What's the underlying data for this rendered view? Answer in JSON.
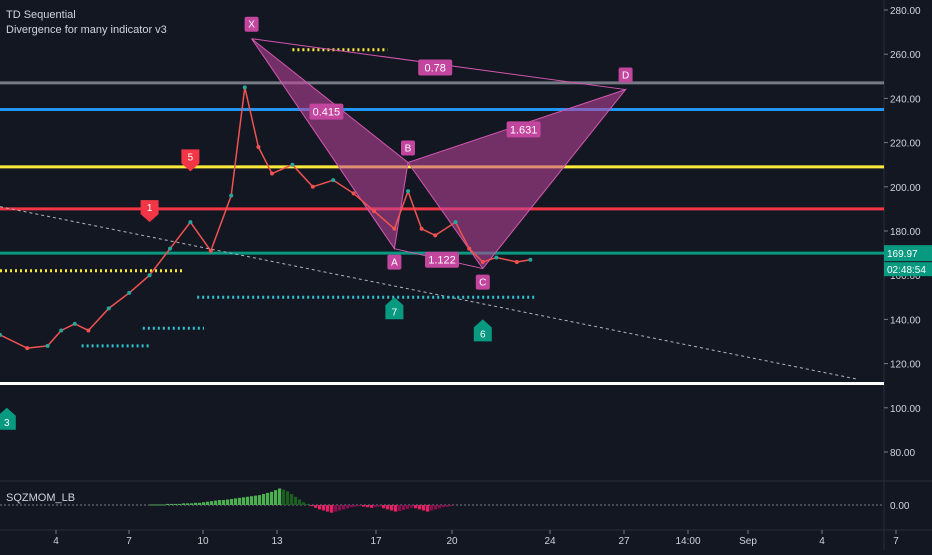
{
  "indicators": [
    "TD Sequential",
    "Divergence for many indicator v3"
  ],
  "oscillator": {
    "name": "SQZMOM_LB",
    "zero_label": "0.00"
  },
  "colors": {
    "bg": "#131722",
    "axis_text": "#d1d4dc",
    "up": "#26a69a",
    "down": "#ef5350",
    "pattern": "#c2459e",
    "pattern_edge": "#d557b0"
  },
  "chart_data": {
    "type": "line",
    "y_axis": {
      "ticks": [
        280,
        260,
        240,
        220,
        200,
        180,
        160,
        140,
        120,
        100,
        80
      ],
      "tick_labels": [
        "280.00",
        "260.00",
        "240.00",
        "220.00",
        "200.00",
        "180.00",
        "160.00",
        "140.00",
        "120.00",
        "100.00",
        "80.00"
      ],
      "range": [
        69,
        282
      ]
    },
    "x_axis": {
      "labels": [
        "4",
        "7",
        "10",
        "13",
        "17",
        "20",
        "24",
        "27",
        "14:00",
        "Sep",
        "4",
        "7"
      ]
    },
    "price_label": {
      "value": 169.97,
      "text": "169.97",
      "countdown": "02:48:54"
    },
    "price_series": [
      {
        "x": 0,
        "y": 133
      },
      {
        "x": 4,
        "y": 127
      },
      {
        "x": 7,
        "y": 128
      },
      {
        "x": 9,
        "y": 135
      },
      {
        "x": 11,
        "y": 138
      },
      {
        "x": 13,
        "y": 135
      },
      {
        "x": 16,
        "y": 145
      },
      {
        "x": 19,
        "y": 152
      },
      {
        "x": 22,
        "y": 160
      },
      {
        "x": 25,
        "y": 172
      },
      {
        "x": 28,
        "y": 184
      },
      {
        "x": 31,
        "y": 171
      },
      {
        "x": 34,
        "y": 196
      },
      {
        "x": 36,
        "y": 245
      },
      {
        "x": 38,
        "y": 218
      },
      {
        "x": 40,
        "y": 206
      },
      {
        "x": 43,
        "y": 210
      },
      {
        "x": 46,
        "y": 200
      },
      {
        "x": 49,
        "y": 203
      },
      {
        "x": 52,
        "y": 197
      },
      {
        "x": 55,
        "y": 189
      },
      {
        "x": 58,
        "y": 181
      },
      {
        "x": 60,
        "y": 198
      },
      {
        "x": 62,
        "y": 181
      },
      {
        "x": 64,
        "y": 178
      },
      {
        "x": 67,
        "y": 184
      },
      {
        "x": 69,
        "y": 172
      },
      {
        "x": 71,
        "y": 166
      },
      {
        "x": 73,
        "y": 168
      },
      {
        "x": 76,
        "y": 166
      },
      {
        "x": 78,
        "y": 167
      }
    ],
    "horizontal_levels": [
      {
        "value": 247,
        "color": "#787b86"
      },
      {
        "value": 235,
        "color": "#2196f3"
      },
      {
        "value": 209,
        "color": "#ffeb3b"
      },
      {
        "value": 190,
        "color": "#f23645"
      },
      {
        "value": 170,
        "color": "#089981"
      },
      {
        "value": 111,
        "color": "#ffffff"
      }
    ],
    "pattern": {
      "points": [
        {
          "label": "X",
          "x": 37,
          "y": 267
        },
        {
          "label": "A",
          "x": 58,
          "y": 172
        },
        {
          "label": "B",
          "x": 60,
          "y": 211
        },
        {
          "label": "C",
          "x": 71,
          "y": 163
        },
        {
          "label": "D",
          "x": 92,
          "y": 244
        }
      ],
      "ratios": [
        {
          "label": "0.415",
          "x": 48,
          "y": 234
        },
        {
          "label": "1.631",
          "x": 77,
          "y": 226
        },
        {
          "label": "0.78",
          "x": 64,
          "y": 254
        },
        {
          "label": "1.122",
          "x": 65,
          "y": 167
        }
      ]
    },
    "td_markers": [
      {
        "label": "1",
        "x": 22,
        "y": 184,
        "color": "#f23645",
        "dir": "down"
      },
      {
        "label": "5",
        "x": 28,
        "y": 207,
        "color": "#f23645",
        "dir": "down"
      },
      {
        "label": "3",
        "x": 1,
        "y": 100,
        "color": "#089981",
        "dir": "up"
      },
      {
        "label": "7",
        "x": 58,
        "y": 150,
        "color": "#089981",
        "dir": "up"
      },
      {
        "label": "6",
        "x": 71,
        "y": 140,
        "color": "#089981",
        "dir": "up"
      }
    ],
    "dotted_lines": [
      {
        "x1": 0,
        "x2": 27,
        "y": 162,
        "color": "#ffeb3b"
      },
      {
        "x1": 43,
        "x2": 57,
        "y": 262,
        "color": "#ffeb3b"
      },
      {
        "x1": 21,
        "x2": 30,
        "y": 136,
        "color": "#2fc2d0"
      },
      {
        "x1": 12,
        "x2": 22,
        "y": 128,
        "color": "#2fc2d0"
      },
      {
        "x1": 29,
        "x2": 79,
        "y": 150,
        "color": "#2fc2d0"
      }
    ],
    "trendline": {
      "x1": 0,
      "y1": 191,
      "x2": 126,
      "y2": 113
    },
    "oscillator_values": [
      1,
      1,
      1,
      1,
      2,
      2,
      2,
      2,
      3,
      3,
      3,
      4,
      4,
      5,
      6,
      7,
      8,
      9,
      9,
      10,
      11,
      12,
      13,
      14,
      15,
      16,
      17,
      18,
      20,
      22,
      24,
      27,
      30,
      28,
      25,
      20,
      15,
      10,
      5,
      2,
      -2,
      -5,
      -8,
      -10,
      -12,
      -14,
      -12,
      -10,
      -8,
      -6,
      -4,
      -3,
      -2,
      -3,
      -4,
      -5,
      -4,
      -3,
      -6,
      -8,
      -10,
      -12,
      -11,
      -9,
      -7,
      -5,
      -6,
      -8,
      -10,
      -12,
      -10,
      -8,
      -6,
      -4,
      -3,
      -2
    ]
  }
}
